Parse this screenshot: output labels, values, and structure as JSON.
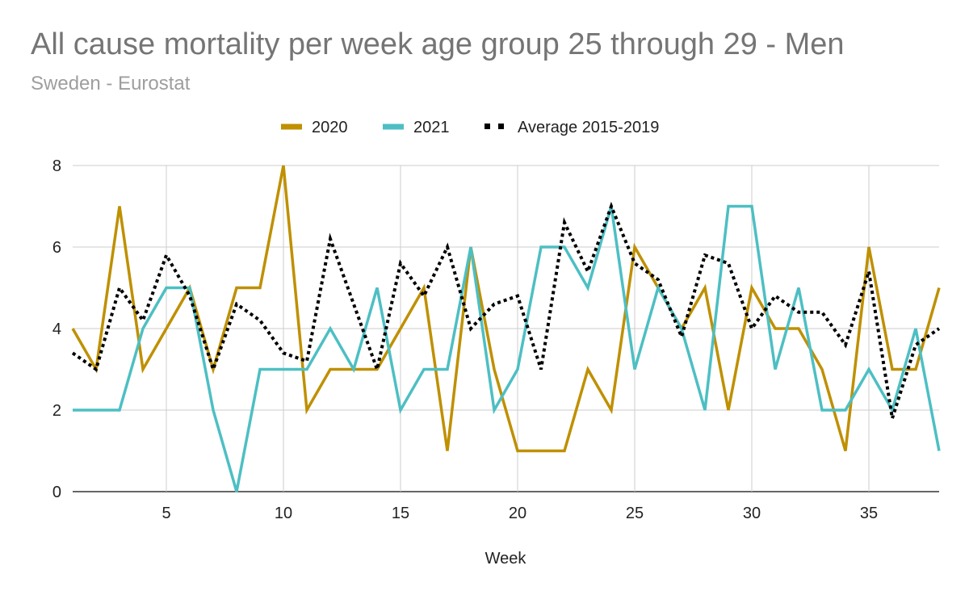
{
  "header": {
    "title": "All cause mortality per week age group 25 through 29 - Men",
    "subtitle": "Sweden - Eurostat"
  },
  "chart_data": {
    "type": "line",
    "title": "All cause mortality per week age group 25 through 29 - Men",
    "subtitle": "Sweden - Eurostat",
    "xlabel": "Week",
    "ylabel": "",
    "xlim": [
      1,
      38
    ],
    "ylim": [
      0,
      8
    ],
    "x_ticks": [
      5,
      10,
      15,
      20,
      25,
      30,
      35
    ],
    "y_ticks": [
      0,
      2,
      4,
      6,
      8
    ],
    "grid": true,
    "legend_position": "top",
    "x": [
      1,
      2,
      3,
      4,
      5,
      6,
      7,
      8,
      9,
      10,
      11,
      12,
      13,
      14,
      15,
      16,
      17,
      18,
      19,
      20,
      21,
      22,
      23,
      24,
      25,
      26,
      27,
      28,
      29,
      30,
      31,
      32,
      33,
      34,
      35,
      36,
      37,
      38
    ],
    "series": [
      {
        "name": "2020",
        "color": "#bf9000",
        "style": "solid",
        "values": [
          4,
          3,
          7,
          3,
          4,
          5,
          3,
          5,
          5,
          8,
          2,
          3,
          3,
          3,
          4,
          5,
          1,
          6,
          3,
          1,
          1,
          1,
          3,
          2,
          6,
          5,
          4,
          5,
          2,
          5,
          4,
          4,
          3,
          1,
          6,
          3,
          3,
          5
        ]
      },
      {
        "name": "2021",
        "color": "#4dbfc3",
        "style": "solid",
        "values": [
          2,
          2,
          2,
          4,
          5,
          5,
          2,
          0,
          3,
          3,
          3,
          4,
          3,
          5,
          2,
          3,
          3,
          6,
          2,
          3,
          6,
          6,
          5,
          7,
          3,
          5,
          4,
          2,
          7,
          7,
          3,
          5,
          2,
          2,
          3,
          2,
          4,
          1
        ]
      },
      {
        "name": "Average 2015-2019",
        "color": "#000000",
        "style": "dotted",
        "values": [
          3.4,
          3,
          5,
          4.2,
          5.8,
          4.8,
          3,
          4.6,
          4.2,
          3.4,
          3.2,
          6.2,
          4.6,
          3,
          5.6,
          4.8,
          6,
          4,
          4.6,
          4.8,
          3,
          6.6,
          5.4,
          7,
          5.6,
          5.2,
          3.8,
          5.8,
          5.6,
          4,
          4.8,
          4.4,
          4.4,
          3.6,
          5.4,
          1.8,
          3.6,
          4
        ]
      }
    ]
  }
}
